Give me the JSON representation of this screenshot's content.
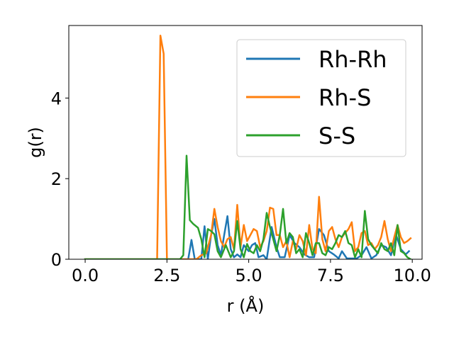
{
  "chart_data": {
    "type": "line",
    "xlabel": "r (Å)",
    "ylabel": "g(r)",
    "xlim": [
      -0.5,
      10.3
    ],
    "ylim": [
      0,
      5.8
    ],
    "xticks": [
      0.0,
      2.5,
      5.0,
      7.5,
      10.0
    ],
    "xtick_labels": [
      "0.0",
      "2.5",
      "5.0",
      "7.5",
      "10.0"
    ],
    "yticks": [
      0,
      2,
      4
    ],
    "ytick_labels": [
      "0",
      "2",
      "4"
    ],
    "grid": false,
    "legend_position": "top-right",
    "series": [
      {
        "name": "Rh-Rh",
        "color": "#1f77b4",
        "points": [
          [
            0.0,
            0
          ],
          [
            3.0,
            0
          ],
          [
            3.15,
            0
          ],
          [
            3.25,
            0.48
          ],
          [
            3.35,
            0
          ],
          [
            3.55,
            0
          ],
          [
            3.65,
            0.82
          ],
          [
            3.75,
            0
          ],
          [
            3.85,
            0.6
          ],
          [
            3.95,
            1.0
          ],
          [
            4.05,
            0.35
          ],
          [
            4.15,
            0.1
          ],
          [
            4.25,
            0.6
          ],
          [
            4.35,
            1.07
          ],
          [
            4.45,
            0.25
          ],
          [
            4.55,
            0.05
          ],
          [
            4.65,
            0.12
          ],
          [
            4.75,
            0.05
          ],
          [
            4.85,
            0.35
          ],
          [
            5.0,
            0.2
          ],
          [
            5.1,
            0.35
          ],
          [
            5.2,
            0.4
          ],
          [
            5.3,
            0.05
          ],
          [
            5.45,
            0.1
          ],
          [
            5.55,
            0.0
          ],
          [
            5.7,
            0.8
          ],
          [
            5.85,
            0.3
          ],
          [
            5.95,
            0.05
          ],
          [
            6.1,
            0.05
          ],
          [
            6.25,
            0.6
          ],
          [
            6.4,
            0.4
          ],
          [
            6.55,
            0.3
          ],
          [
            6.7,
            0.12
          ],
          [
            6.85,
            0.05
          ],
          [
            7.0,
            0.05
          ],
          [
            7.15,
            0.75
          ],
          [
            7.3,
            0.6
          ],
          [
            7.45,
            0.2
          ],
          [
            7.6,
            0.12
          ],
          [
            7.75,
            0.02
          ],
          [
            7.85,
            0.2
          ],
          [
            8.0,
            0.02
          ],
          [
            8.3,
            0.02
          ],
          [
            8.45,
            0.1
          ],
          [
            8.6,
            0.3
          ],
          [
            8.75,
            0.02
          ],
          [
            8.9,
            0.1
          ],
          [
            9.05,
            0.35
          ],
          [
            9.2,
            0.3
          ],
          [
            9.35,
            0.1
          ],
          [
            9.5,
            0.62
          ],
          [
            9.65,
            0.25
          ],
          [
            9.8,
            0.12
          ],
          [
            9.9,
            0.2
          ]
        ]
      },
      {
        "name": "Rh-S",
        "color": "#ff7f0e",
        "points": [
          [
            0.0,
            0
          ],
          [
            2.2,
            0
          ],
          [
            2.3,
            5.55
          ],
          [
            2.4,
            5.1
          ],
          [
            2.5,
            0
          ],
          [
            3.4,
            0
          ],
          [
            3.55,
            0.1
          ],
          [
            3.7,
            0.15
          ],
          [
            3.85,
            0.6
          ],
          [
            3.95,
            1.25
          ],
          [
            4.05,
            0.8
          ],
          [
            4.15,
            0.45
          ],
          [
            4.25,
            0.3
          ],
          [
            4.35,
            0.5
          ],
          [
            4.45,
            0.55
          ],
          [
            4.55,
            0.25
          ],
          [
            4.65,
            1.35
          ],
          [
            4.75,
            0.3
          ],
          [
            4.85,
            0.85
          ],
          [
            4.95,
            0.45
          ],
          [
            5.05,
            0.6
          ],
          [
            5.15,
            0.75
          ],
          [
            5.25,
            0.7
          ],
          [
            5.35,
            0.3
          ],
          [
            5.45,
            0.45
          ],
          [
            5.55,
            0.7
          ],
          [
            5.65,
            1.28
          ],
          [
            5.75,
            1.25
          ],
          [
            5.85,
            0.6
          ],
          [
            5.95,
            0.6
          ],
          [
            6.05,
            0.3
          ],
          [
            6.15,
            0.45
          ],
          [
            6.25,
            0.05
          ],
          [
            6.35,
            0.45
          ],
          [
            6.45,
            0.25
          ],
          [
            6.55,
            0.6
          ],
          [
            6.65,
            0.45
          ],
          [
            6.75,
            0.1
          ],
          [
            6.85,
            0.85
          ],
          [
            6.95,
            0.25
          ],
          [
            7.05,
            0.15
          ],
          [
            7.15,
            1.55
          ],
          [
            7.25,
            0.5
          ],
          [
            7.35,
            0.2
          ],
          [
            7.45,
            0.7
          ],
          [
            7.55,
            0.8
          ],
          [
            7.65,
            0.5
          ],
          [
            7.75,
            0.3
          ],
          [
            7.85,
            0.55
          ],
          [
            7.95,
            0.65
          ],
          [
            8.05,
            0.75
          ],
          [
            8.15,
            0.92
          ],
          [
            8.25,
            0.2
          ],
          [
            8.35,
            0.3
          ],
          [
            8.45,
            0.65
          ],
          [
            8.55,
            0.7
          ],
          [
            8.65,
            0.35
          ],
          [
            8.75,
            0.4
          ],
          [
            8.85,
            0.25
          ],
          [
            8.95,
            0.35
          ],
          [
            9.05,
            0.55
          ],
          [
            9.15,
            0.95
          ],
          [
            9.25,
            0.5
          ],
          [
            9.35,
            0.2
          ],
          [
            9.45,
            0.55
          ],
          [
            9.55,
            0.85
          ],
          [
            9.65,
            0.55
          ],
          [
            9.75,
            0.4
          ],
          [
            9.85,
            0.45
          ],
          [
            9.95,
            0.52
          ]
        ]
      },
      {
        "name": "S-S",
        "color": "#2ca02c",
        "points": [
          [
            0.0,
            0
          ],
          [
            2.9,
            0
          ],
          [
            3.0,
            0.1
          ],
          [
            3.1,
            2.57
          ],
          [
            3.2,
            0.97
          ],
          [
            3.3,
            0.88
          ],
          [
            3.45,
            0.78
          ],
          [
            3.55,
            0.5
          ],
          [
            3.65,
            0.05
          ],
          [
            3.75,
            0.75
          ],
          [
            3.85,
            0.7
          ],
          [
            3.95,
            0.62
          ],
          [
            4.05,
            0.2
          ],
          [
            4.15,
            0.05
          ],
          [
            4.3,
            0.35
          ],
          [
            4.45,
            0.05
          ],
          [
            4.55,
            0.2
          ],
          [
            4.65,
            0.95
          ],
          [
            4.75,
            0.25
          ],
          [
            4.85,
            0.05
          ],
          [
            4.95,
            0.38
          ],
          [
            5.05,
            0.2
          ],
          [
            5.15,
            0.15
          ],
          [
            5.25,
            0.35
          ],
          [
            5.35,
            0.2
          ],
          [
            5.45,
            0.5
          ],
          [
            5.55,
            1.15
          ],
          [
            5.65,
            0.8
          ],
          [
            5.75,
            0.5
          ],
          [
            5.85,
            0.2
          ],
          [
            5.95,
            0.6
          ],
          [
            6.05,
            1.25
          ],
          [
            6.15,
            0.4
          ],
          [
            6.25,
            0.65
          ],
          [
            6.35,
            0.55
          ],
          [
            6.45,
            0.15
          ],
          [
            6.55,
            0.25
          ],
          [
            6.65,
            0.05
          ],
          [
            6.75,
            0.65
          ],
          [
            6.85,
            0.4
          ],
          [
            6.95,
            0.1
          ],
          [
            7.05,
            0.4
          ],
          [
            7.15,
            0.4
          ],
          [
            7.25,
            0.15
          ],
          [
            7.35,
            0.1
          ],
          [
            7.45,
            0.3
          ],
          [
            7.55,
            0.25
          ],
          [
            7.65,
            0.4
          ],
          [
            7.75,
            0.6
          ],
          [
            7.85,
            0.55
          ],
          [
            7.95,
            0.7
          ],
          [
            8.05,
            0.4
          ],
          [
            8.15,
            0.35
          ],
          [
            8.25,
            0.05
          ],
          [
            8.35,
            0.25
          ],
          [
            8.45,
            0.05
          ],
          [
            8.55,
            1.2
          ],
          [
            8.65,
            0.5
          ],
          [
            8.75,
            0.35
          ],
          [
            8.85,
            0.25
          ],
          [
            8.95,
            0.15
          ],
          [
            9.05,
            0.4
          ],
          [
            9.15,
            0.25
          ],
          [
            9.25,
            0.2
          ],
          [
            9.35,
            0.4
          ],
          [
            9.45,
            0.1
          ],
          [
            9.55,
            0.85
          ],
          [
            9.65,
            0.2
          ],
          [
            9.75,
            0.15
          ],
          [
            9.85,
            0.05
          ],
          [
            9.95,
            0.0
          ]
        ]
      }
    ]
  }
}
